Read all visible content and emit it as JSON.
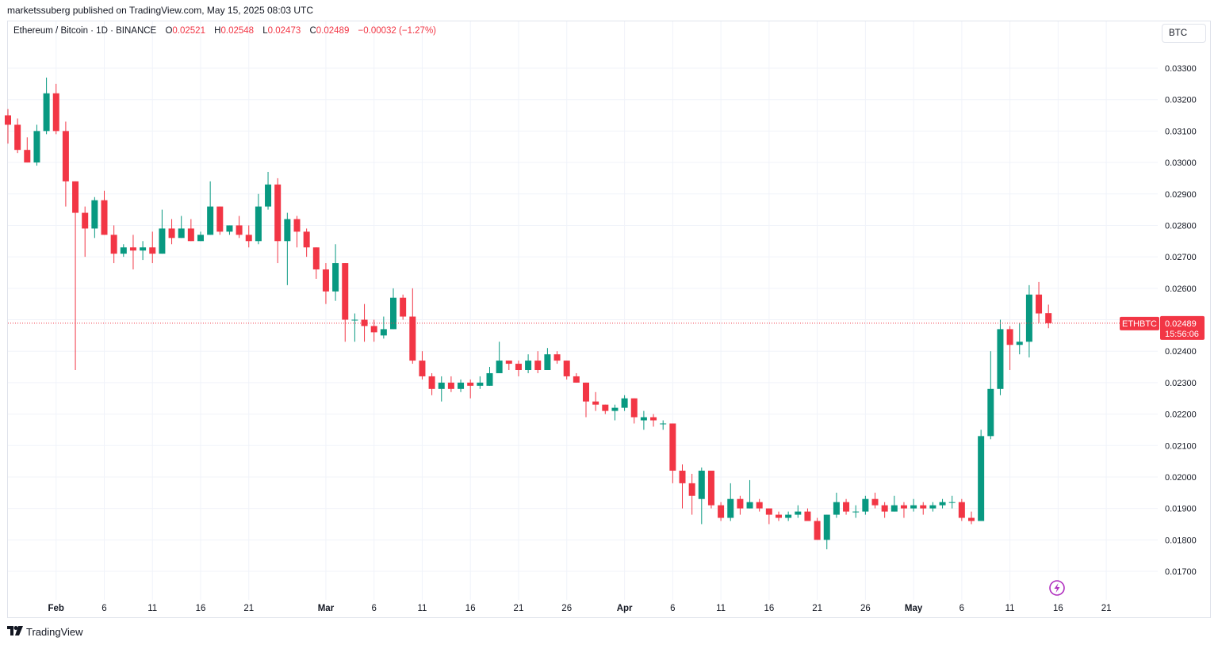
{
  "header": {
    "publisher_line": "marketssuberg published on TradingView.com, May 15, 2025 08:03 UTC"
  },
  "legend": {
    "symbol_text": "Ethereum / Bitcoin · 1D · BINANCE",
    "open_label": "O",
    "open_value": "0.02521",
    "high_label": "H",
    "high_value": "0.02548",
    "low_label": "L",
    "low_value": "0.02473",
    "close_label": "C",
    "close_value": "0.02489",
    "change_value": "−0.00032 (−1.27%)"
  },
  "currency_selector": "BTC",
  "price_tag": {
    "symbol": "ETHBTC",
    "price": "0.02489",
    "countdown": "15:56:06"
  },
  "footer": {
    "brand": "TradingView"
  },
  "colors": {
    "up": "#089981",
    "down": "#f23645",
    "grid": "#f0f3fa",
    "text": "#131722"
  },
  "icons": {
    "footer_logo": "tradingview-logo-icon",
    "replay": "lightning-icon"
  },
  "chart_data": {
    "type": "candlestick",
    "symbol": "ETHBTC",
    "interval": "1D",
    "exchange": "BINANCE",
    "quote_currency": "BTC",
    "last_price": 0.02489,
    "ylim": [
      0.0165,
      0.0342
    ],
    "y_ticks": [
      "0.03300",
      "0.03200",
      "0.03100",
      "0.03000",
      "0.02900",
      "0.02800",
      "0.02700",
      "0.02600",
      "0.02500",
      "0.02400",
      "0.02300",
      "0.02200",
      "0.02100",
      "0.02000",
      "0.01900",
      "0.01800",
      "0.01700"
    ],
    "y_tick_values": [
      0.033,
      0.032,
      0.031,
      0.03,
      0.029,
      0.028,
      0.027,
      0.026,
      0.025,
      0.024,
      0.023,
      0.022,
      0.021,
      0.02,
      0.019,
      0.018,
      0.017
    ],
    "x_ticks": [
      {
        "label": "Feb",
        "date": "2025-02-01",
        "bold": true
      },
      {
        "label": "6",
        "date": "2025-02-06"
      },
      {
        "label": "11",
        "date": "2025-02-11"
      },
      {
        "label": "16",
        "date": "2025-02-16"
      },
      {
        "label": "21",
        "date": "2025-02-21"
      },
      {
        "label": "Mar",
        "date": "2025-03-01",
        "bold": true
      },
      {
        "label": "6",
        "date": "2025-03-06"
      },
      {
        "label": "11",
        "date": "2025-03-11"
      },
      {
        "label": "16",
        "date": "2025-03-16"
      },
      {
        "label": "21",
        "date": "2025-03-21"
      },
      {
        "label": "26",
        "date": "2025-03-26"
      },
      {
        "label": "Apr",
        "date": "2025-04-01",
        "bold": true
      },
      {
        "label": "6",
        "date": "2025-04-06"
      },
      {
        "label": "11",
        "date": "2025-04-11"
      },
      {
        "label": "16",
        "date": "2025-04-16"
      },
      {
        "label": "21",
        "date": "2025-04-21"
      },
      {
        "label": "26",
        "date": "2025-04-26"
      },
      {
        "label": "May",
        "date": "2025-05-01",
        "bold": true
      },
      {
        "label": "6",
        "date": "2025-05-06"
      },
      {
        "label": "11",
        "date": "2025-05-11"
      },
      {
        "label": "16",
        "date": "2025-05-16"
      },
      {
        "label": "21",
        "date": "2025-05-21"
      }
    ],
    "candles": [
      {
        "date": "2025-01-27",
        "o": 0.0315,
        "h": 0.0317,
        "l": 0.0306,
        "c": 0.0312
      },
      {
        "date": "2025-01-28",
        "o": 0.0312,
        "h": 0.0314,
        "l": 0.0303,
        "c": 0.0304
      },
      {
        "date": "2025-01-29",
        "o": 0.0304,
        "h": 0.0308,
        "l": 0.03,
        "c": 0.03
      },
      {
        "date": "2025-01-30",
        "o": 0.03,
        "h": 0.0312,
        "l": 0.0299,
        "c": 0.031
      },
      {
        "date": "2025-01-31",
        "o": 0.031,
        "h": 0.0327,
        "l": 0.0309,
        "c": 0.0322
      },
      {
        "date": "2025-02-01",
        "o": 0.0322,
        "h": 0.0325,
        "l": 0.0309,
        "c": 0.031
      },
      {
        "date": "2025-02-02",
        "o": 0.031,
        "h": 0.0313,
        "l": 0.0286,
        "c": 0.0294
      },
      {
        "date": "2025-02-03",
        "o": 0.0294,
        "h": 0.0294,
        "l": 0.0234,
        "c": 0.0284
      },
      {
        "date": "2025-02-04",
        "o": 0.0284,
        "h": 0.0286,
        "l": 0.027,
        "c": 0.0279
      },
      {
        "date": "2025-02-05",
        "o": 0.0279,
        "h": 0.0289,
        "l": 0.0276,
        "c": 0.0288
      },
      {
        "date": "2025-02-06",
        "o": 0.0288,
        "h": 0.0291,
        "l": 0.0277,
        "c": 0.0277
      },
      {
        "date": "2025-02-07",
        "o": 0.0277,
        "h": 0.028,
        "l": 0.0268,
        "c": 0.0271
      },
      {
        "date": "2025-02-08",
        "o": 0.0271,
        "h": 0.0274,
        "l": 0.027,
        "c": 0.0273
      },
      {
        "date": "2025-02-09",
        "o": 0.0273,
        "h": 0.0277,
        "l": 0.0266,
        "c": 0.0272
      },
      {
        "date": "2025-02-10",
        "o": 0.0272,
        "h": 0.0275,
        "l": 0.0269,
        "c": 0.0273
      },
      {
        "date": "2025-02-11",
        "o": 0.0273,
        "h": 0.0278,
        "l": 0.0268,
        "c": 0.0271
      },
      {
        "date": "2025-02-12",
        "o": 0.0271,
        "h": 0.0285,
        "l": 0.0271,
        "c": 0.0279
      },
      {
        "date": "2025-02-13",
        "o": 0.0279,
        "h": 0.0282,
        "l": 0.0274,
        "c": 0.0276
      },
      {
        "date": "2025-02-14",
        "o": 0.0276,
        "h": 0.0283,
        "l": 0.0276,
        "c": 0.0279
      },
      {
        "date": "2025-02-15",
        "o": 0.0279,
        "h": 0.0282,
        "l": 0.0275,
        "c": 0.0275
      },
      {
        "date": "2025-02-16",
        "o": 0.0275,
        "h": 0.0278,
        "l": 0.0275,
        "c": 0.0277
      },
      {
        "date": "2025-02-17",
        "o": 0.0277,
        "h": 0.0294,
        "l": 0.0277,
        "c": 0.0286
      },
      {
        "date": "2025-02-18",
        "o": 0.0286,
        "h": 0.0286,
        "l": 0.0277,
        "c": 0.0278
      },
      {
        "date": "2025-02-19",
        "o": 0.0278,
        "h": 0.028,
        "l": 0.0277,
        "c": 0.028
      },
      {
        "date": "2025-02-20",
        "o": 0.028,
        "h": 0.0283,
        "l": 0.0276,
        "c": 0.0277
      },
      {
        "date": "2025-02-21",
        "o": 0.0277,
        "h": 0.028,
        "l": 0.0273,
        "c": 0.0275
      },
      {
        "date": "2025-02-22",
        "o": 0.0275,
        "h": 0.029,
        "l": 0.0274,
        "c": 0.0286
      },
      {
        "date": "2025-02-23",
        "o": 0.0286,
        "h": 0.0297,
        "l": 0.0285,
        "c": 0.0293
      },
      {
        "date": "2025-02-24",
        "o": 0.0293,
        "h": 0.0295,
        "l": 0.0268,
        "c": 0.0275
      },
      {
        "date": "2025-02-25",
        "o": 0.0275,
        "h": 0.0284,
        "l": 0.0261,
        "c": 0.0282
      },
      {
        "date": "2025-02-26",
        "o": 0.0282,
        "h": 0.0283,
        "l": 0.0273,
        "c": 0.0278
      },
      {
        "date": "2025-02-27",
        "o": 0.0278,
        "h": 0.0279,
        "l": 0.027,
        "c": 0.0273
      },
      {
        "date": "2025-02-28",
        "o": 0.0273,
        "h": 0.0273,
        "l": 0.0263,
        "c": 0.0266
      },
      {
        "date": "2025-03-01",
        "o": 0.0266,
        "h": 0.0268,
        "l": 0.0255,
        "c": 0.0259
      },
      {
        "date": "2025-03-02",
        "o": 0.0259,
        "h": 0.0274,
        "l": 0.0256,
        "c": 0.0268
      },
      {
        "date": "2025-03-03",
        "o": 0.0268,
        "h": 0.0268,
        "l": 0.0243,
        "c": 0.025
      },
      {
        "date": "2025-03-04",
        "o": 0.025,
        "h": 0.0252,
        "l": 0.0243,
        "c": 0.025
      },
      {
        "date": "2025-03-05",
        "o": 0.025,
        "h": 0.0255,
        "l": 0.0243,
        "c": 0.0248
      },
      {
        "date": "2025-03-06",
        "o": 0.0248,
        "h": 0.025,
        "l": 0.0243,
        "c": 0.0246
      },
      {
        "date": "2025-03-07",
        "o": 0.0245,
        "h": 0.0251,
        "l": 0.0244,
        "c": 0.0247
      },
      {
        "date": "2025-03-08",
        "o": 0.0247,
        "h": 0.026,
        "l": 0.0247,
        "c": 0.0257
      },
      {
        "date": "2025-03-09",
        "o": 0.0257,
        "h": 0.0258,
        "l": 0.025,
        "c": 0.0251
      },
      {
        "date": "2025-03-10",
        "o": 0.0251,
        "h": 0.026,
        "l": 0.0236,
        "c": 0.0237
      },
      {
        "date": "2025-03-11",
        "o": 0.0237,
        "h": 0.024,
        "l": 0.0231,
        "c": 0.0232
      },
      {
        "date": "2025-03-12",
        "o": 0.0232,
        "h": 0.0233,
        "l": 0.0226,
        "c": 0.0228
      },
      {
        "date": "2025-03-13",
        "o": 0.0228,
        "h": 0.0232,
        "l": 0.0224,
        "c": 0.023
      },
      {
        "date": "2025-03-14",
        "o": 0.023,
        "h": 0.0232,
        "l": 0.0227,
        "c": 0.0228
      },
      {
        "date": "2025-03-15",
        "o": 0.0228,
        "h": 0.0231,
        "l": 0.0227,
        "c": 0.023
      },
      {
        "date": "2025-03-16",
        "o": 0.023,
        "h": 0.0231,
        "l": 0.0225,
        "c": 0.0229
      },
      {
        "date": "2025-03-17",
        "o": 0.0229,
        "h": 0.0232,
        "l": 0.0228,
        "c": 0.023
      },
      {
        "date": "2025-03-18",
        "o": 0.0229,
        "h": 0.0235,
        "l": 0.0229,
        "c": 0.0233
      },
      {
        "date": "2025-03-19",
        "o": 0.0233,
        "h": 0.0243,
        "l": 0.0233,
        "c": 0.0237
      },
      {
        "date": "2025-03-20",
        "o": 0.0237,
        "h": 0.0237,
        "l": 0.0234,
        "c": 0.0236
      },
      {
        "date": "2025-03-21",
        "o": 0.0236,
        "h": 0.0237,
        "l": 0.0232,
        "c": 0.0234
      },
      {
        "date": "2025-03-22",
        "o": 0.0234,
        "h": 0.0239,
        "l": 0.0233,
        "c": 0.0237
      },
      {
        "date": "2025-03-23",
        "o": 0.0237,
        "h": 0.024,
        "l": 0.0233,
        "c": 0.0234
      },
      {
        "date": "2025-03-24",
        "o": 0.0234,
        "h": 0.0241,
        "l": 0.0234,
        "c": 0.0239
      },
      {
        "date": "2025-03-25",
        "o": 0.0239,
        "h": 0.024,
        "l": 0.0236,
        "c": 0.0237
      },
      {
        "date": "2025-03-26",
        "o": 0.0237,
        "h": 0.0237,
        "l": 0.0231,
        "c": 0.0232
      },
      {
        "date": "2025-03-27",
        "o": 0.0232,
        "h": 0.0233,
        "l": 0.023,
        "c": 0.023
      },
      {
        "date": "2025-03-28",
        "o": 0.023,
        "h": 0.023,
        "l": 0.0219,
        "c": 0.0224
      },
      {
        "date": "2025-03-29",
        "o": 0.0224,
        "h": 0.0227,
        "l": 0.0221,
        "c": 0.0223
      },
      {
        "date": "2025-03-30",
        "o": 0.0223,
        "h": 0.0223,
        "l": 0.022,
        "c": 0.0221
      },
      {
        "date": "2025-03-31",
        "o": 0.0221,
        "h": 0.0223,
        "l": 0.0218,
        "c": 0.0222
      },
      {
        "date": "2025-04-01",
        "o": 0.0222,
        "h": 0.0226,
        "l": 0.0221,
        "c": 0.0225
      },
      {
        "date": "2025-04-02",
        "o": 0.0225,
        "h": 0.0225,
        "l": 0.0217,
        "c": 0.0219
      },
      {
        "date": "2025-04-03",
        "o": 0.0218,
        "h": 0.0221,
        "l": 0.0215,
        "c": 0.0219
      },
      {
        "date": "2025-04-04",
        "o": 0.0219,
        "h": 0.022,
        "l": 0.0216,
        "c": 0.0218
      },
      {
        "date": "2025-04-05",
        "o": 0.0217,
        "h": 0.0218,
        "l": 0.0215,
        "c": 0.0217
      },
      {
        "date": "2025-04-06",
        "o": 0.0217,
        "h": 0.0217,
        "l": 0.0198,
        "c": 0.0202
      },
      {
        "date": "2025-04-07",
        "o": 0.0202,
        "h": 0.0204,
        "l": 0.019,
        "c": 0.0198
      },
      {
        "date": "2025-04-08",
        "o": 0.0198,
        "h": 0.0201,
        "l": 0.0188,
        "c": 0.0194
      },
      {
        "date": "2025-04-09",
        "o": 0.0193,
        "h": 0.0203,
        "l": 0.0185,
        "c": 0.0202
      },
      {
        "date": "2025-04-10",
        "o": 0.0202,
        "h": 0.0202,
        "l": 0.019,
        "c": 0.0191
      },
      {
        "date": "2025-04-11",
        "o": 0.0191,
        "h": 0.0192,
        "l": 0.0186,
        "c": 0.0187
      },
      {
        "date": "2025-04-12",
        "o": 0.0187,
        "h": 0.0198,
        "l": 0.0186,
        "c": 0.0193
      },
      {
        "date": "2025-04-13",
        "o": 0.0193,
        "h": 0.0194,
        "l": 0.0188,
        "c": 0.019
      },
      {
        "date": "2025-04-14",
        "o": 0.019,
        "h": 0.0199,
        "l": 0.019,
        "c": 0.0192
      },
      {
        "date": "2025-04-15",
        "o": 0.0192,
        "h": 0.0193,
        "l": 0.0189,
        "c": 0.019
      },
      {
        "date": "2025-04-16",
        "o": 0.019,
        "h": 0.019,
        "l": 0.0185,
        "c": 0.0188
      },
      {
        "date": "2025-04-17",
        "o": 0.0188,
        "h": 0.0189,
        "l": 0.0186,
        "c": 0.0187
      },
      {
        "date": "2025-04-18",
        "o": 0.0187,
        "h": 0.0189,
        "l": 0.0186,
        "c": 0.0188
      },
      {
        "date": "2025-04-19",
        "o": 0.0188,
        "h": 0.0191,
        "l": 0.0187,
        "c": 0.0189
      },
      {
        "date": "2025-04-20",
        "o": 0.0189,
        "h": 0.019,
        "l": 0.0186,
        "c": 0.0186
      },
      {
        "date": "2025-04-21",
        "o": 0.0186,
        "h": 0.0187,
        "l": 0.018,
        "c": 0.018
      },
      {
        "date": "2025-04-22",
        "o": 0.018,
        "h": 0.0188,
        "l": 0.0177,
        "c": 0.0188
      },
      {
        "date": "2025-04-23",
        "o": 0.0188,
        "h": 0.0195,
        "l": 0.0187,
        "c": 0.0192
      },
      {
        "date": "2025-04-24",
        "o": 0.0192,
        "h": 0.0193,
        "l": 0.0188,
        "c": 0.0189
      },
      {
        "date": "2025-04-25",
        "o": 0.0189,
        "h": 0.0191,
        "l": 0.0187,
        "c": 0.0189
      },
      {
        "date": "2025-04-26",
        "o": 0.0189,
        "h": 0.0194,
        "l": 0.0188,
        "c": 0.0193
      },
      {
        "date": "2025-04-27",
        "o": 0.0193,
        "h": 0.0195,
        "l": 0.019,
        "c": 0.0191
      },
      {
        "date": "2025-04-28",
        "o": 0.0191,
        "h": 0.0192,
        "l": 0.0187,
        "c": 0.0189
      },
      {
        "date": "2025-04-29",
        "o": 0.0189,
        "h": 0.0194,
        "l": 0.0189,
        "c": 0.0191
      },
      {
        "date": "2025-04-30",
        "o": 0.0191,
        "h": 0.0192,
        "l": 0.0187,
        "c": 0.019
      },
      {
        "date": "2025-05-01",
        "o": 0.019,
        "h": 0.0193,
        "l": 0.0189,
        "c": 0.0191
      },
      {
        "date": "2025-05-02",
        "o": 0.0191,
        "h": 0.0192,
        "l": 0.0188,
        "c": 0.019
      },
      {
        "date": "2025-05-03",
        "o": 0.019,
        "h": 0.0192,
        "l": 0.0189,
        "c": 0.0191
      },
      {
        "date": "2025-05-04",
        "o": 0.0191,
        "h": 0.0193,
        "l": 0.019,
        "c": 0.0192
      },
      {
        "date": "2025-05-05",
        "o": 0.0192,
        "h": 0.0194,
        "l": 0.019,
        "c": 0.0192
      },
      {
        "date": "2025-05-06",
        "o": 0.0192,
        "h": 0.0193,
        "l": 0.0186,
        "c": 0.0187
      },
      {
        "date": "2025-05-07",
        "o": 0.0187,
        "h": 0.0189,
        "l": 0.0185,
        "c": 0.0186
      },
      {
        "date": "2025-05-08",
        "o": 0.0186,
        "h": 0.0215,
        "l": 0.0186,
        "c": 0.0213
      },
      {
        "date": "2025-05-09",
        "o": 0.0213,
        "h": 0.024,
        "l": 0.0212,
        "c": 0.0228
      },
      {
        "date": "2025-05-10",
        "o": 0.0228,
        "h": 0.025,
        "l": 0.0226,
        "c": 0.0247
      },
      {
        "date": "2025-05-11",
        "o": 0.0247,
        "h": 0.0248,
        "l": 0.0234,
        "c": 0.0242
      },
      {
        "date": "2025-05-12",
        "o": 0.0242,
        "h": 0.0249,
        "l": 0.0239,
        "c": 0.0243
      },
      {
        "date": "2025-05-13",
        "o": 0.0243,
        "h": 0.0261,
        "l": 0.0238,
        "c": 0.0258
      },
      {
        "date": "2025-05-14",
        "o": 0.0258,
        "h": 0.0262,
        "l": 0.0249,
        "c": 0.0252
      },
      {
        "date": "2025-05-15",
        "o": 0.02521,
        "h": 0.02548,
        "l": 0.02473,
        "c": 0.02489
      }
    ]
  }
}
